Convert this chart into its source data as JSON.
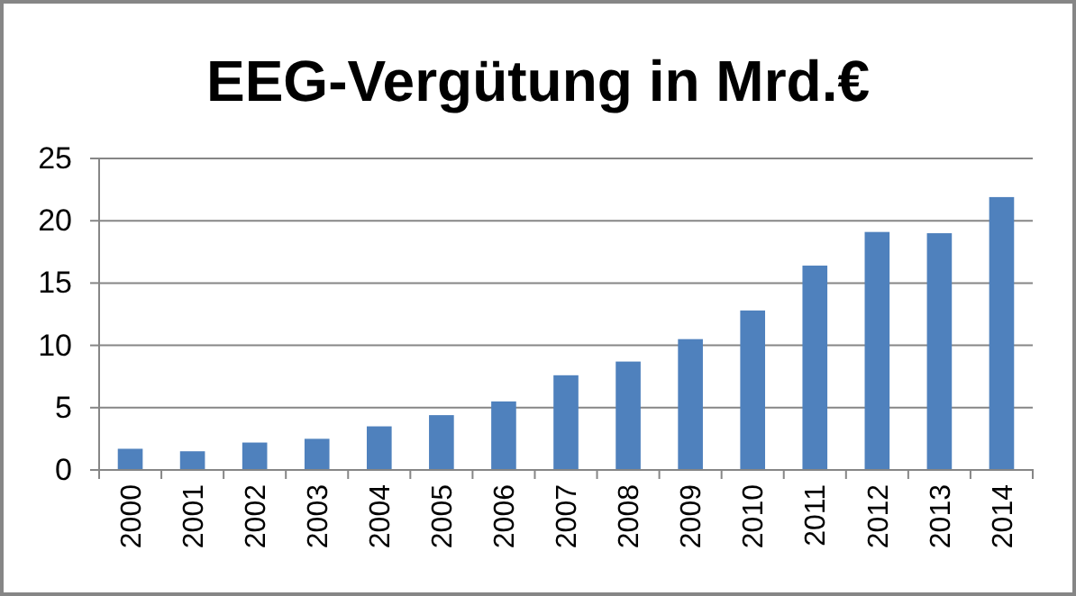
{
  "chart_data": {
    "type": "bar",
    "title": "EEG-Vergütung in Mrd.€",
    "categories": [
      "2000",
      "2001",
      "2002",
      "2003",
      "2004",
      "2005",
      "2006",
      "2007",
      "2008",
      "2009",
      "2010",
      "2011",
      "2012",
      "2013",
      "2014"
    ],
    "values": [
      1.7,
      1.5,
      2.2,
      2.5,
      3.5,
      4.4,
      5.5,
      7.6,
      8.7,
      10.5,
      12.8,
      16.4,
      19.1,
      19.0,
      21.9
    ],
    "color": "#4f81bd",
    "ylim": [
      0,
      25
    ],
    "yticks": [
      0,
      5,
      10,
      15,
      20,
      25
    ],
    "grid": "y"
  }
}
